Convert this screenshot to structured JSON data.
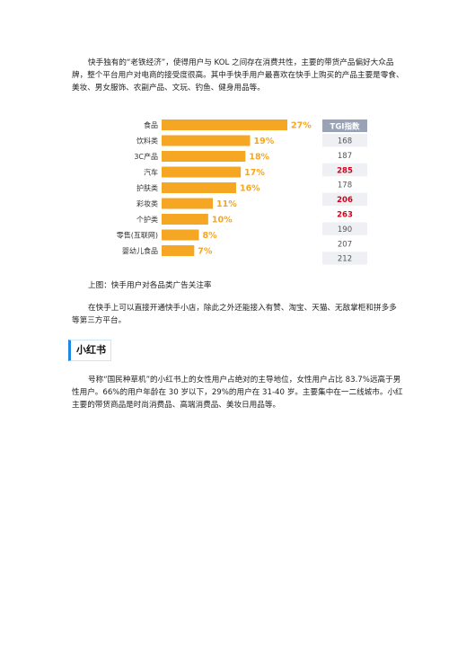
{
  "paragraph1": "快手独有的“老铁经济”，使得用户与 KOL 之间存在消费共性，主要的带货产品偏好大众品牌，整个平台用户对电商的接受度很高。其中手快手用户最喜欢在快手上购买的产品主要是零食、美妆、男女服饰、农副产品、文玩、钓鱼、健身用品等。",
  "caption": "上图：快手用户对各品类广告关注率",
  "paragraph2": "在快手上可以直接开通快手小店，除此之外还能接入有赞、淘宝、天猫、无敌掌柜和拼多多等第三方平台。",
  "section_heading": "小红书",
  "paragraph3": "号称“国民种草机”的小红书上的女性用户占绝对的主导地位，女性用户占比 83.7%远高于男性用户。66%的用户年龄在 30 岁以下，29%的用户在 31-40 岁。主要集中在一二线城市。小红主要的带货商品是时尚消费品、高端消费品、美妆日用品等。",
  "chart_data": {
    "type": "bar",
    "orientation": "horizontal",
    "categories": [
      "食品",
      "饮料类",
      "3C产品",
      "汽车",
      "护肤类",
      "彩妆类",
      "个护类",
      "零售(互联网)",
      "婴幼儿食品"
    ],
    "values": [
      27,
      19,
      18,
      17,
      16,
      11,
      10,
      8,
      7
    ],
    "value_labels": [
      "27%",
      "19%",
      "18%",
      "17%",
      "16%",
      "11%",
      "10%",
      "8%",
      "7%"
    ],
    "tgi_header": "TGI指数",
    "tgi": [
      "168",
      "187",
      "285",
      "178",
      "206",
      "263",
      "190",
      "207",
      "212"
    ],
    "tgi_highlight": [
      false,
      false,
      true,
      false,
      true,
      true,
      false,
      false,
      false
    ],
    "xlim": [
      0,
      27
    ],
    "colors": {
      "bar": "#f5a623",
      "label": "#f5a623",
      "tgi_header_bg": "#9aa3b5",
      "tgi_normal": "#555555",
      "tgi_high": "#d0021b",
      "tgi_row_bg": "#eef0f4"
    }
  }
}
